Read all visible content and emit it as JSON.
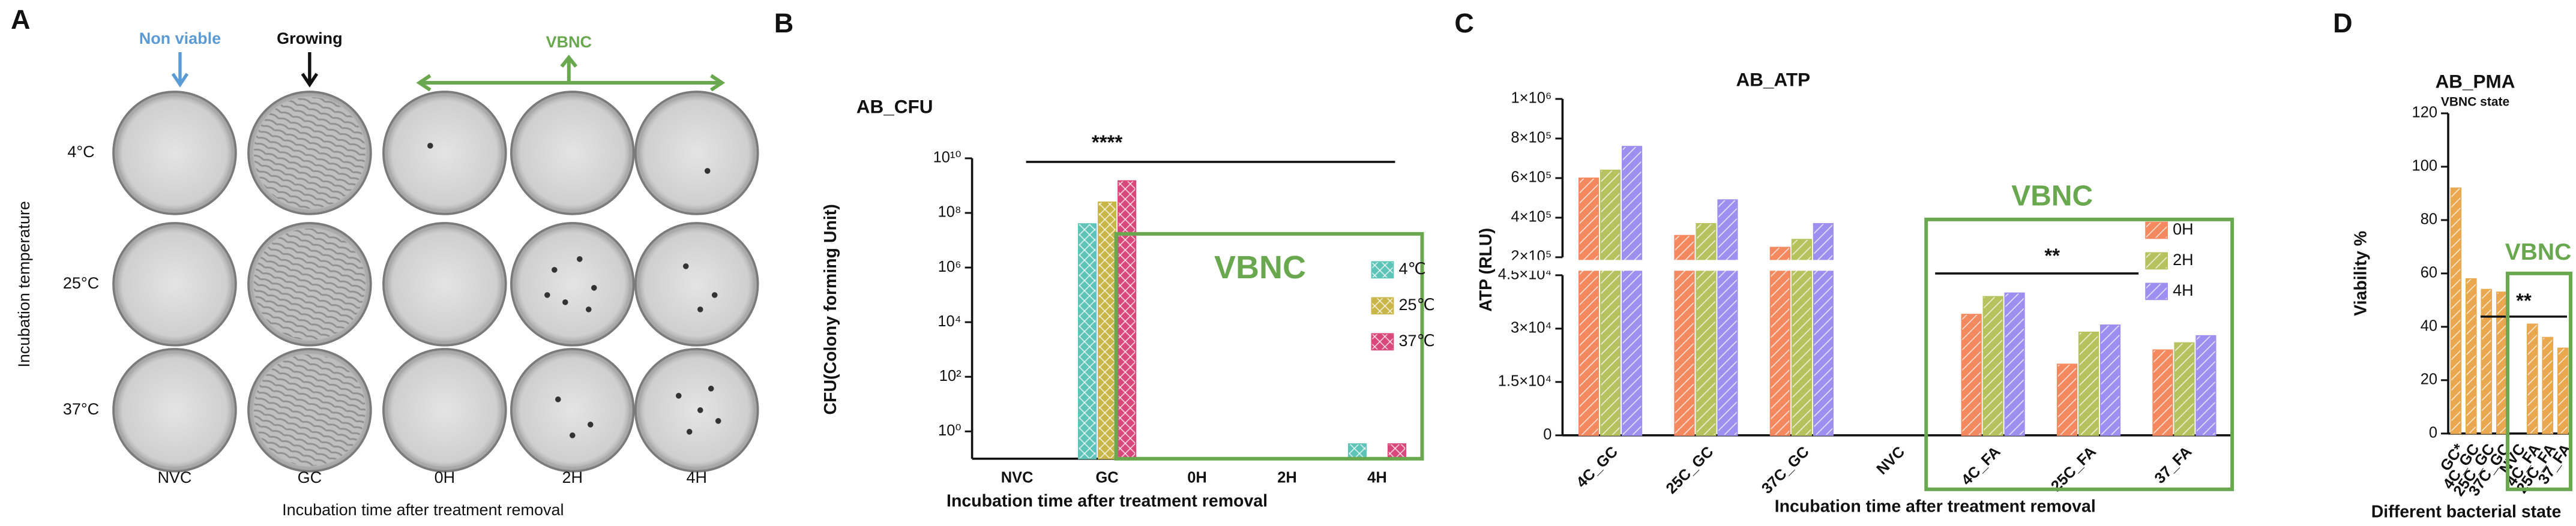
{
  "panel_labels": [
    "A",
    "B",
    "C",
    "D"
  ],
  "panel_a": {
    "top_labels": {
      "non_viable": "Non viable",
      "growing": "Growing",
      "vbnc": "VBNC"
    },
    "y_label": "Incubation temperature",
    "rows": [
      "4°C",
      "25°C",
      "37°C"
    ],
    "columns": [
      "NVC",
      "GC",
      "0H",
      "2H",
      "4H"
    ],
    "x_label": "Incubation time after treatment removal"
  },
  "chart_data": [
    {
      "type": "bar",
      "title": "AB_CFU",
      "xlabel": "Incubation time after treatment removal",
      "ylabel": "CFU(Colony forming Unit)",
      "categories": [
        "NVC",
        "GC",
        "0H",
        "2H",
        "4H"
      ],
      "series": [
        {
          "name": "4℃",
          "color": "#5fc4b8",
          "values": [
            null,
            40000000,
            null,
            null,
            0.35
          ]
        },
        {
          "name": "25℃",
          "color": "#c9b649",
          "values": [
            null,
            250000000,
            null,
            null,
            null
          ]
        },
        {
          "name": "37℃",
          "color": "#d9487a",
          "values": [
            null,
            1500000000,
            null,
            null,
            0.35
          ]
        }
      ],
      "log_scale": true,
      "ylim": [
        0.1,
        10000000000
      ],
      "yticks": [
        {
          "value": 1,
          "label": "10⁰"
        },
        {
          "value": 100,
          "label": "10²"
        },
        {
          "value": 10000,
          "label": "10⁴"
        },
        {
          "value": 1000000,
          "label": "10⁶"
        },
        {
          "value": 100000000,
          "label": "10⁸"
        },
        {
          "value": 10000000000,
          "label": "10¹⁰"
        }
      ],
      "annotation": "****",
      "box_label": "VBNC",
      "legend": "right",
      "hatch": "cross"
    },
    {
      "type": "bar",
      "title": "AB_ATP",
      "xlabel": "Incubation time after treatment removal",
      "ylabel": "ATP (RLU)",
      "categories": [
        "4C_GC",
        "25C_GC",
        "37C_GC",
        "NVC",
        "4C_FA",
        "25C_FA",
        "37_FA"
      ],
      "series": [
        {
          "name": "0H",
          "color": "#f4895f",
          "values": [
            600000,
            310000,
            250000,
            null,
            34000,
            20000,
            24000
          ]
        },
        {
          "name": "2H",
          "color": "#b5c25e",
          "values": [
            640000,
            370000,
            290000,
            null,
            39000,
            29000,
            26000
          ]
        },
        {
          "name": "4H",
          "color": "#9d8ff0",
          "values": [
            760000,
            490000,
            370000,
            null,
            40000,
            31000,
            28000
          ]
        }
      ],
      "y_break": true,
      "ylim": [
        0,
        45000
      ],
      "yticks": [
        0,
        {
          "value": 15000,
          "label": "1.5×10⁴"
        },
        {
          "value": 30000,
          "label": "3×10⁴"
        },
        {
          "value": 45000,
          "label": "4.5×10⁴"
        }
      ],
      "ylim_upper": [
        200000,
        1000000
      ],
      "yticks_upper": [
        {
          "value": 200000,
          "label": "2×10⁵"
        },
        {
          "value": 400000,
          "label": "4×10⁵"
        },
        {
          "value": 600000,
          "label": "6×10⁵"
        },
        {
          "value": 800000,
          "label": "8×10⁵"
        },
        {
          "value": 1000000,
          "label": "1×10⁶"
        }
      ],
      "annotation": "**",
      "box_label": "VBNC",
      "legend": "right",
      "hatch": "diagonal"
    },
    {
      "type": "bar",
      "title": "AB_PMA",
      "subtitle": "VBNC state",
      "xlabel": "Different bacterial state",
      "ylabel": "Viability %",
      "categories": [
        "GC*",
        "4C_GC",
        "25C_GC",
        "37C_GC",
        "NVC",
        "4C_FA",
        "25C_FA",
        "37_FA"
      ],
      "values": [
        92,
        58,
        54,
        53,
        null,
        41,
        36,
        32
      ],
      "color": "#e9a84f",
      "ylim": [
        0,
        120
      ],
      "yticks": [
        0,
        20,
        40,
        60,
        80,
        100,
        120
      ],
      "annotation": "**",
      "box_label": "VBNC",
      "hatch": "diagonal"
    }
  ]
}
